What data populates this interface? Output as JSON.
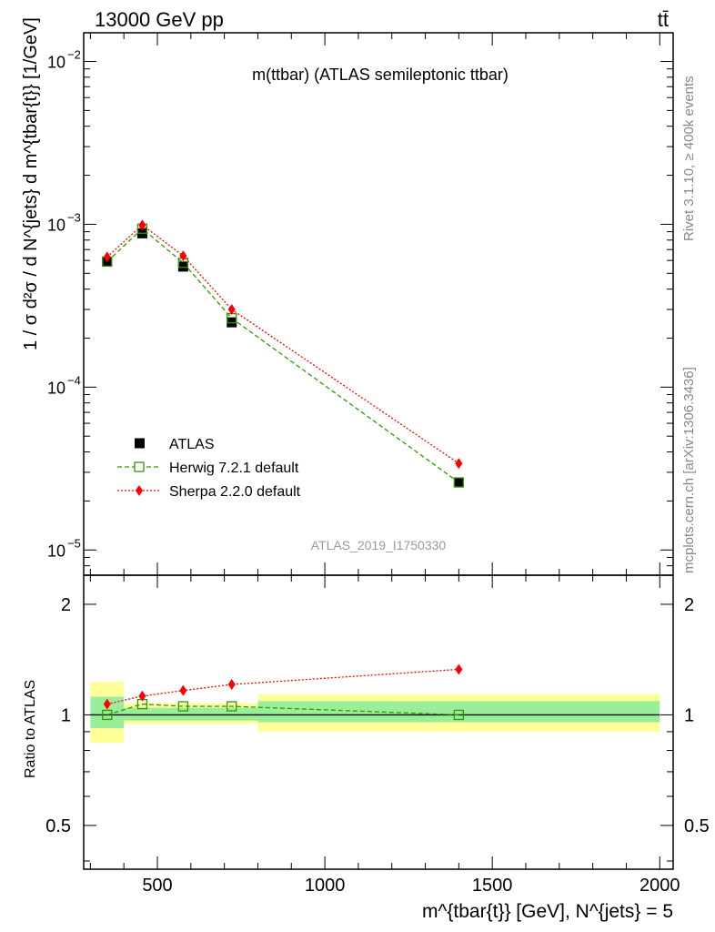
{
  "header": {
    "left": "13000 GeV pp",
    "right": "tt̄"
  },
  "side_labels": {
    "rivet": "Rivet 3.1.10, ≥ 400k events",
    "mcplots": "mcplots.cern.ch [arXiv:1306.3436]"
  },
  "chart_data": [
    {
      "type": "line",
      "title": "m(ttbar) (ATLAS semileptonic ttbar)",
      "watermark": "ATLAS_2019_I1750330",
      "xlabel": "m^{tbar{t}} [GeV], N^{jets} = 5",
      "ylabel": "1 / σ d²σ / d N^{jets} d m^{tbar{t}} [1/GeV]",
      "xlim": [
        280,
        2040
      ],
      "ylim": [
        7e-06,
        0.015
      ],
      "log_y": true,
      "y_ticks": [
        {
          "value": 1e-05,
          "mant": "10",
          "exp": "−5"
        },
        {
          "value": 0.0001,
          "mant": "10",
          "exp": "−4"
        },
        {
          "value": 0.001,
          "mant": "10",
          "exp": "−3"
        },
        {
          "value": 0.01,
          "mant": "10",
          "exp": "−2"
        }
      ],
      "x_ticks": [
        500,
        1000,
        1500,
        2000
      ],
      "legend_position": "bottom-left",
      "x": [
        350,
        455,
        577,
        722,
        1400
      ],
      "series": [
        {
          "name": "ATLAS",
          "values": [
            0.00059,
            0.00088,
            0.00055,
            0.00025,
            2.6e-05
          ],
          "color": "#000000",
          "marker": "square-filled"
        },
        {
          "name": "Herwig 7.2.1 default",
          "values": [
            0.00059,
            0.00094,
            0.00058,
            0.000265,
            2.6e-05
          ],
          "color": "#339900",
          "marker": "square-open",
          "line": "dashed"
        },
        {
          "name": "Sherpa 2.2.0 default",
          "values": [
            0.00063,
            0.00099,
            0.00064,
            0.0003,
            3.4e-05
          ],
          "color": "#ff0000",
          "marker": "diamond",
          "line": "dotted"
        }
      ]
    },
    {
      "type": "line",
      "ylabel": "Ratio to ATLAS",
      "xlim": [
        280,
        2040
      ],
      "ylim": [
        0.38,
        2.4
      ],
      "log_y": true,
      "y_ticks": [
        0.5,
        1,
        2
      ],
      "x_ticks": [
        500,
        1000,
        1500,
        2000
      ],
      "bins": [
        {
          "lo": 300,
          "hi": 400,
          "stat": [
            0.92,
            1.12
          ],
          "total": [
            0.84,
            1.23
          ]
        },
        {
          "lo": 400,
          "hi": 800,
          "stat": [
            0.965,
            1.045
          ],
          "total": [
            0.945,
            1.075
          ]
        },
        {
          "lo": 800,
          "hi": 2000,
          "stat": [
            0.955,
            1.09
          ],
          "total": [
            0.9,
            1.14
          ]
        }
      ],
      "x": [
        350,
        455,
        577,
        722,
        1400
      ],
      "series": [
        {
          "name": "Herwig 7.2.1 default",
          "values": [
            1.0,
            1.07,
            1.055,
            1.055,
            1.0
          ],
          "color": "#339900"
        },
        {
          "name": "Sherpa 2.2.0 default",
          "values": [
            1.07,
            1.125,
            1.165,
            1.21,
            1.33
          ],
          "color": "#ff0000"
        }
      ]
    }
  ]
}
